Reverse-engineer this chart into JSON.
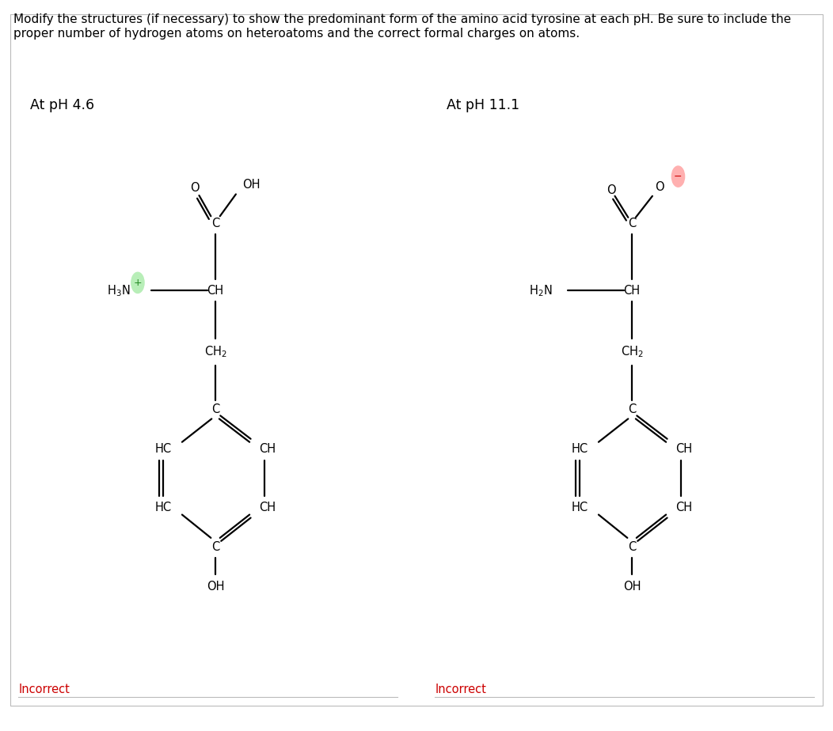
{
  "title_line1": "Modify the structures (if necessary) to show the predominant form of the amino acid tyrosine at each pH. Be sure to include the",
  "title_line2": "proper number of hydrogen atoms on heteroatoms and the correct formal charges on atoms.",
  "panel1_title": "At pH 4.6",
  "panel2_title": "At pH 11.1",
  "incorrect_color": "#cc0000",
  "incorrect_text": "Incorrect",
  "bg_color": "#ebebeb",
  "panel_border_color": "#cc0000",
  "outer_border_color": "#cccccc",
  "lw": 1.6,
  "fs": 10.5
}
